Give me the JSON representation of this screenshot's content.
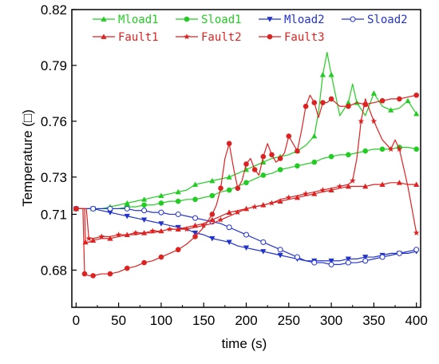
{
  "chart_data": {
    "type": "line",
    "title": "",
    "xlabel": "time (s)",
    "ylabel": "Temperature (□)",
    "xlim": [
      -5,
      405
    ],
    "ylim": [
      0.66,
      0.82
    ],
    "xticks": [
      0,
      50,
      100,
      150,
      200,
      250,
      300,
      350,
      400
    ],
    "yticks": [
      0.68,
      0.71,
      0.73,
      0.76,
      0.79,
      0.82
    ],
    "ytick_labels": [
      "0.68",
      "0.71",
      "0.73",
      "0.76",
      "0.79",
      "0.82"
    ],
    "grid": false,
    "legend_placement": "top",
    "series": [
      {
        "name": "Mload1",
        "color": "#22cc22",
        "marker": "triangle-up",
        "x": [
          0,
          10,
          20,
          30,
          40,
          50,
          60,
          70,
          80,
          90,
          100,
          110,
          120,
          130,
          140,
          150,
          160,
          170,
          180,
          190,
          200,
          210,
          220,
          230,
          240,
          250,
          260,
          270,
          280,
          285,
          290,
          295,
          300,
          310,
          320,
          325,
          330,
          340,
          350,
          360,
          370,
          380,
          390,
          400
        ],
        "y": [
          0.713,
          0.713,
          0.713,
          0.713,
          0.714,
          0.715,
          0.716,
          0.717,
          0.718,
          0.719,
          0.72,
          0.721,
          0.722,
          0.723,
          0.726,
          0.727,
          0.728,
          0.729,
          0.73,
          0.732,
          0.734,
          0.736,
          0.738,
          0.74,
          0.741,
          0.742,
          0.744,
          0.747,
          0.752,
          0.765,
          0.785,
          0.797,
          0.785,
          0.763,
          0.77,
          0.78,
          0.77,
          0.763,
          0.775,
          0.768,
          0.766,
          0.767,
          0.771,
          0.764
        ]
      },
      {
        "name": "Sload1",
        "color": "#22cc22",
        "marker": "circle",
        "x": [
          0,
          10,
          20,
          30,
          40,
          50,
          60,
          70,
          80,
          90,
          100,
          110,
          120,
          130,
          140,
          150,
          160,
          170,
          180,
          190,
          200,
          210,
          220,
          230,
          240,
          250,
          260,
          270,
          280,
          290,
          300,
          310,
          320,
          330,
          340,
          350,
          360,
          370,
          380,
          390,
          400
        ],
        "y": [
          0.713,
          0.713,
          0.713,
          0.713,
          0.713,
          0.713,
          0.714,
          0.714,
          0.715,
          0.715,
          0.716,
          0.717,
          0.717,
          0.718,
          0.718,
          0.719,
          0.72,
          0.722,
          0.723,
          0.725,
          0.727,
          0.729,
          0.731,
          0.732,
          0.734,
          0.735,
          0.736,
          0.737,
          0.738,
          0.74,
          0.741,
          0.742,
          0.742,
          0.743,
          0.744,
          0.745,
          0.745,
          0.745,
          0.746,
          0.746,
          0.745
        ]
      },
      {
        "name": "Mload2",
        "color": "#2233cc",
        "marker": "triangle-down",
        "x": [
          0,
          10,
          20,
          30,
          40,
          50,
          60,
          70,
          80,
          90,
          100,
          110,
          120,
          130,
          140,
          150,
          160,
          170,
          180,
          190,
          200,
          210,
          220,
          230,
          240,
          250,
          260,
          270,
          280,
          290,
          300,
          310,
          320,
          330,
          340,
          350,
          360,
          370,
          380,
          390,
          400
        ],
        "y": [
          0.713,
          0.713,
          0.713,
          0.712,
          0.711,
          0.71,
          0.709,
          0.708,
          0.707,
          0.706,
          0.705,
          0.704,
          0.703,
          0.702,
          0.7,
          0.699,
          0.697,
          0.696,
          0.695,
          0.693,
          0.692,
          0.691,
          0.69,
          0.689,
          0.688,
          0.687,
          0.686,
          0.685,
          0.685,
          0.685,
          0.685,
          0.685,
          0.686,
          0.686,
          0.687,
          0.687,
          0.688,
          0.689,
          0.689,
          0.689,
          0.69
        ]
      },
      {
        "name": "Sload2",
        "color": "#2233cc",
        "marker": "circle-open",
        "x": [
          0,
          10,
          20,
          30,
          40,
          50,
          60,
          70,
          80,
          90,
          100,
          110,
          120,
          130,
          140,
          150,
          160,
          170,
          180,
          190,
          200,
          210,
          220,
          230,
          240,
          250,
          260,
          270,
          280,
          290,
          300,
          310,
          320,
          330,
          340,
          350,
          360,
          370,
          380,
          390,
          400
        ],
        "y": [
          0.713,
          0.713,
          0.713,
          0.713,
          0.713,
          0.713,
          0.713,
          0.712,
          0.712,
          0.711,
          0.711,
          0.71,
          0.71,
          0.709,
          0.708,
          0.707,
          0.706,
          0.705,
          0.703,
          0.701,
          0.699,
          0.697,
          0.695,
          0.693,
          0.691,
          0.689,
          0.687,
          0.685,
          0.684,
          0.684,
          0.683,
          0.683,
          0.684,
          0.684,
          0.685,
          0.686,
          0.687,
          0.688,
          0.689,
          0.69,
          0.691
        ]
      },
      {
        "name": "Fault1",
        "color": "#dd2222",
        "marker": "triangle-up",
        "x": [
          0,
          10,
          11,
          15,
          20,
          30,
          40,
          50,
          60,
          70,
          80,
          90,
          100,
          110,
          120,
          130,
          140,
          150,
          160,
          170,
          180,
          190,
          200,
          210,
          220,
          230,
          240,
          250,
          260,
          270,
          280,
          290,
          300,
          310,
          320,
          330,
          340,
          350,
          360,
          370,
          380,
          390,
          400
        ],
        "y": [
          0.713,
          0.713,
          0.695,
          0.695,
          0.696,
          0.697,
          0.697,
          0.698,
          0.699,
          0.699,
          0.7,
          0.7,
          0.701,
          0.702,
          0.702,
          0.703,
          0.704,
          0.705,
          0.707,
          0.709,
          0.711,
          0.712,
          0.713,
          0.714,
          0.715,
          0.716,
          0.717,
          0.718,
          0.719,
          0.72,
          0.721,
          0.722,
          0.723,
          0.724,
          0.725,
          0.725,
          0.725,
          0.726,
          0.726,
          0.727,
          0.727,
          0.726,
          0.726
        ]
      },
      {
        "name": "Fault2",
        "color": "#dd2222",
        "marker": "star",
        "x": [
          0,
          12,
          15,
          20,
          30,
          40,
          50,
          60,
          70,
          80,
          90,
          100,
          110,
          120,
          130,
          140,
          150,
          160,
          170,
          180,
          190,
          200,
          210,
          220,
          230,
          240,
          250,
          260,
          270,
          280,
          290,
          300,
          310,
          320,
          325,
          330,
          335,
          340,
          350,
          360,
          370,
          375,
          380,
          390,
          400
        ],
        "y": [
          0.713,
          0.713,
          0.697,
          0.697,
          0.698,
          0.698,
          0.699,
          0.699,
          0.7,
          0.7,
          0.701,
          0.701,
          0.702,
          0.702,
          0.702,
          0.703,
          0.704,
          0.705,
          0.707,
          0.709,
          0.711,
          0.713,
          0.714,
          0.715,
          0.716,
          0.718,
          0.719,
          0.72,
          0.721,
          0.722,
          0.723,
          0.724,
          0.725,
          0.726,
          0.728,
          0.74,
          0.76,
          0.772,
          0.76,
          0.75,
          0.745,
          0.75,
          0.745,
          0.725,
          0.7
        ]
      },
      {
        "name": "Fault3",
        "color": "#dd2222",
        "marker": "circle",
        "x": [
          0,
          8,
          10,
          15,
          20,
          30,
          40,
          50,
          60,
          70,
          80,
          90,
          100,
          110,
          120,
          130,
          140,
          150,
          160,
          165,
          170,
          175,
          180,
          185,
          190,
          195,
          200,
          205,
          210,
          215,
          220,
          225,
          230,
          235,
          240,
          245,
          250,
          255,
          260,
          265,
          270,
          275,
          280,
          285,
          290,
          295,
          300,
          310,
          320,
          330,
          340,
          350,
          360,
          370,
          380,
          390,
          400
        ],
        "y": [
          0.713,
          0.713,
          0.678,
          0.677,
          0.677,
          0.678,
          0.678,
          0.679,
          0.681,
          0.682,
          0.684,
          0.685,
          0.687,
          0.689,
          0.691,
          0.694,
          0.698,
          0.703,
          0.71,
          0.715,
          0.724,
          0.74,
          0.748,
          0.735,
          0.724,
          0.728,
          0.737,
          0.74,
          0.734,
          0.731,
          0.741,
          0.748,
          0.742,
          0.738,
          0.74,
          0.743,
          0.752,
          0.748,
          0.744,
          0.755,
          0.768,
          0.774,
          0.77,
          0.762,
          0.77,
          0.77,
          0.772,
          0.768,
          0.768,
          0.77,
          0.769,
          0.77,
          0.771,
          0.772,
          0.772,
          0.773,
          0.774
        ]
      }
    ]
  }
}
